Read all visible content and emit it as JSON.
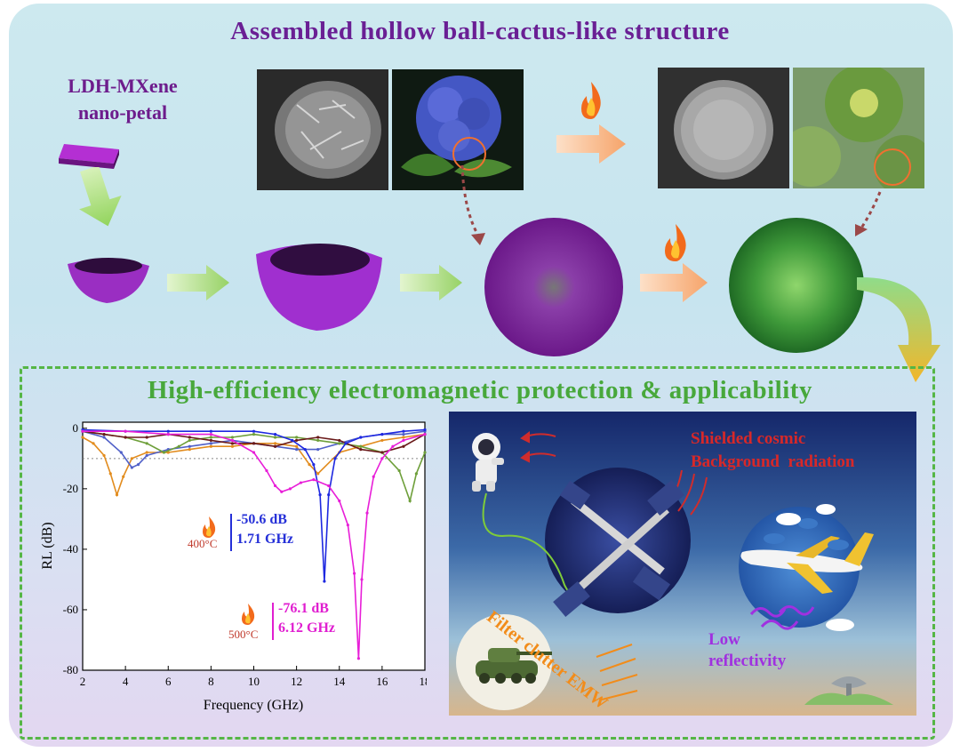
{
  "top_title": "Assembled hollow ball-cactus-like structure",
  "bottom_title": "High-efficiency electromagnetic protection & applicability",
  "precursor_label": "LDH-MXene nano-petal",
  "chart": {
    "ylabel": "RL (dB)",
    "xlabel": "Frequency (GHz)",
    "x_ticks": [
      "2",
      "4",
      "6",
      "8",
      "10",
      "12",
      "14",
      "16",
      "18"
    ],
    "y_ticks": [
      "0",
      "-20",
      "-40",
      "-60",
      "-80"
    ],
    "annotation_400": {
      "temp": "400°C",
      "rl": "-50.6 dB",
      "thickness": "1.71 GHz"
    },
    "annotation_500": {
      "temp": "500°C",
      "rl": "-76.1 dB",
      "thickness": "6.12 GHz"
    }
  },
  "chart_data": {
    "type": "line",
    "xlabel": "Frequency (GHz)",
    "ylabel": "RL (dB)",
    "xlim": [
      2,
      18
    ],
    "ylim": [
      -80,
      2
    ],
    "reference_line": -10,
    "series": [
      {
        "color": "#e28c1e",
        "x": [
          2,
          2.5,
          3,
          3.3,
          3.6,
          3.9,
          4.3,
          5,
          6,
          7,
          8,
          9,
          10,
          11,
          12,
          12.6,
          13,
          14,
          15,
          16,
          17,
          18
        ],
        "y": [
          -3,
          -5,
          -9,
          -15,
          -22,
          -16,
          -10,
          -8,
          -8,
          -7,
          -6,
          -6,
          -5,
          -5,
          -6,
          -12,
          -15,
          -8,
          -6,
          -4,
          -3,
          -2
        ]
      },
      {
        "color": "#5060c8",
        "x": [
          2,
          3,
          3.8,
          4.3,
          4.6,
          5,
          6,
          7,
          8,
          9,
          10,
          11,
          12,
          13,
          14,
          15,
          16,
          17,
          18
        ],
        "y": [
          -1,
          -3,
          -8,
          -13,
          -12,
          -9,
          -7,
          -6,
          -5,
          -4,
          -5,
          -6,
          -7,
          -7,
          -5,
          -3,
          -2,
          -2,
          -1
        ]
      },
      {
        "color": "#6e9f3a",
        "x": [
          2,
          3,
          4,
          5,
          5.8,
          6.5,
          7,
          8,
          9,
          10,
          11,
          12,
          13,
          14,
          15,
          16,
          16.8,
          17.3,
          17.6,
          18
        ],
        "y": [
          -1,
          -2,
          -3,
          -5,
          -8,
          -6,
          -4,
          -3,
          -3,
          -2,
          -3,
          -3,
          -4,
          -5,
          -6,
          -8,
          -14,
          -24,
          -15,
          -8
        ]
      },
      {
        "color": "#6a1a1a",
        "x": [
          2,
          3,
          4,
          5,
          6,
          7,
          8,
          9,
          10,
          11,
          12,
          13,
          14,
          15,
          16,
          17,
          18
        ],
        "y": [
          -1,
          -2,
          -3,
          -3,
          -2,
          -3,
          -4,
          -5,
          -5,
          -6,
          -4,
          -3,
          -4,
          -7,
          -8,
          -6,
          -2
        ]
      },
      {
        "color": "#1e28e0",
        "x": [
          2,
          4,
          6,
          8,
          10,
          11,
          11.8,
          12.4,
          12.8,
          13.1,
          13.3,
          13.5,
          13.8,
          14.3,
          15,
          16,
          17,
          18
        ],
        "y": [
          -0.5,
          -1,
          -1,
          -1,
          -1,
          -2,
          -4,
          -7,
          -12,
          -22,
          -50.6,
          -22,
          -10,
          -5,
          -3,
          -2,
          -1,
          -0.5
        ]
      },
      {
        "color": "#e81ed8",
        "x": [
          2,
          4,
          6,
          8,
          9,
          10,
          10.6,
          11,
          11.3,
          11.7,
          12.2,
          12.8,
          13.5,
          14,
          14.4,
          14.7,
          14.9,
          15.05,
          15.3,
          15.6,
          16,
          16.5,
          17,
          18
        ],
        "y": [
          -1,
          -1,
          -2,
          -2,
          -4,
          -8,
          -14,
          -19,
          -21,
          -20,
          -18,
          -17,
          -19,
          -24,
          -32,
          -48,
          -76.1,
          -50,
          -28,
          -16,
          -10,
          -6,
          -4,
          -2
        ]
      }
    ]
  },
  "scene_text": {
    "shield_line1": "Shielded cosmic",
    "shield_line2": "Background  radiation",
    "filter": "Filter clutter EMW",
    "low1": "Low",
    "low2": "reflectivity"
  }
}
